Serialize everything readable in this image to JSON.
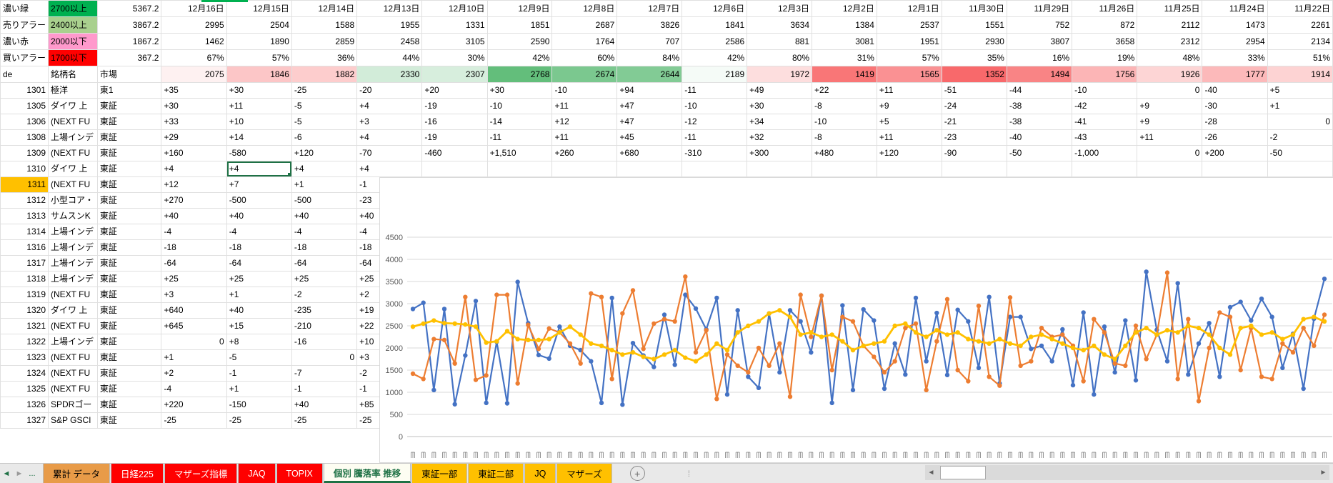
{
  "sheet": {
    "corner_rows": [
      {
        "label": "濃い緑",
        "threshold": "2700以上",
        "threshold_bg": "#00b050",
        "value": "5367.2"
      },
      {
        "label": "売りアラー",
        "threshold": "2400以上",
        "threshold_bg": "#a9d08e",
        "value": "3867.2"
      },
      {
        "label": "濃い赤",
        "threshold": "2000以下",
        "threshold_bg": "#ff99cc",
        "value": "1867.2"
      },
      {
        "label": "買いアラー",
        "threshold": "1700以下",
        "threshold_bg": "#ff0000",
        "value": "367.2"
      }
    ],
    "header_row": {
      "code": "de",
      "name": "銘柄名",
      "market": "市場"
    },
    "dates": [
      "12月16日",
      "12月15日",
      "12月14日",
      "12月13日",
      "12月10日",
      "12月9日",
      "12月8日",
      "12月7日",
      "12月6日",
      "12月3日",
      "12月2日",
      "12月1日",
      "11月30日",
      "11月29日",
      "11月26日",
      "11月25日",
      "11月24日",
      "11月22日"
    ],
    "counts_row1": [
      "2995",
      "2504",
      "1588",
      "1955",
      "1331",
      "1851",
      "2687",
      "3826",
      "1841",
      "3634",
      "1384",
      "2537",
      "1551",
      "752",
      "872",
      "2112",
      "1473",
      "2261"
    ],
    "counts_row2": [
      "1462",
      "1890",
      "2859",
      "2458",
      "3105",
      "2590",
      "1764",
      "707",
      "2586",
      "881",
      "3081",
      "1951",
      "2930",
      "3807",
      "3658",
      "2312",
      "2954",
      "2134"
    ],
    "percent_row": [
      "67%",
      "57%",
      "36%",
      "44%",
      "30%",
      "42%",
      "60%",
      "84%",
      "42%",
      "80%",
      "31%",
      "57%",
      "35%",
      "16%",
      "19%",
      "48%",
      "33%",
      "51%"
    ],
    "totals_row": [
      2075,
      1846,
      1882,
      2330,
      2307,
      2768,
      2674,
      2644,
      2189,
      1972,
      1419,
      1565,
      1352,
      1494,
      1756,
      1926,
      1777,
      1914
    ],
    "totals_color_scale": {
      "min": 1352,
      "mid": 2150,
      "max": 2768,
      "min_color": "#F8696B",
      "mid_color": "#FFFFFF",
      "max_color": "#63BE7B"
    },
    "stocks": [
      {
        "code": "1301",
        "name": "極洋",
        "market": "東1",
        "values": [
          "+35",
          "+30",
          "-25",
          "-20",
          "+20",
          "+30",
          "-10",
          "+94",
          "-11",
          "+49",
          "+22",
          "+11",
          "-51",
          "-44",
          "-10",
          "0",
          "-40",
          "+5"
        ]
      },
      {
        "code": "1305",
        "name": "ダイワ 上",
        "market": "東証",
        "values": [
          "+30",
          "+11",
          "-5",
          "+4",
          "-19",
          "-10",
          "+11",
          "+47",
          "-10",
          "+30",
          "-8",
          "+9",
          "-24",
          "-38",
          "-42",
          "+9",
          "-30",
          "+1"
        ]
      },
      {
        "code": "1306",
        "name": "(NEXT FU",
        "market": "東証",
        "values": [
          "+33",
          "+10",
          "-5",
          "+3",
          "-16",
          "-14",
          "+12",
          "+47",
          "-12",
          "+34",
          "-10",
          "+5",
          "-21",
          "-38",
          "-41",
          "+9",
          "-28",
          "0"
        ]
      },
      {
        "code": "1308",
        "name": "上場インデ",
        "market": "東証",
        "values": [
          "+29",
          "+14",
          "-6",
          "+4",
          "-19",
          "-11",
          "+11",
          "+45",
          "-11",
          "+32",
          "-8",
          "+11",
          "-23",
          "-40",
          "-43",
          "+11",
          "-26",
          "-2"
        ]
      },
      {
        "code": "1309",
        "name": "(NEXT FU",
        "market": "東証",
        "values": [
          "+160",
          "-580",
          "+120",
          "-70",
          "-460",
          "+1,510",
          "+260",
          "+680",
          "-310",
          "+300",
          "+480",
          "+120",
          "-90",
          "-50",
          "-1,000",
          "0",
          "+200",
          "-50"
        ]
      },
      {
        "code": "1310",
        "name": "ダイワ 上",
        "market": "東証",
        "values": [
          "+4",
          "+4",
          "+4",
          "+4",
          "",
          "",
          "",
          "",
          "",
          "",
          "",
          "",
          "",
          "",
          "",
          "",
          "",
          ""
        ]
      },
      {
        "code": "1311",
        "name": "(NEXT FU",
        "market": "東証",
        "values": [
          "+12",
          "+7",
          "+1",
          "-1",
          "",
          "",
          "",
          "",
          "",
          "",
          "",
          "",
          "",
          "",
          "",
          "",
          "",
          ""
        ]
      },
      {
        "code": "1312",
        "name": "小型コア・",
        "market": "東証",
        "values": [
          "+270",
          "-500",
          "-500",
          "-23",
          "",
          "",
          "",
          "",
          "",
          "",
          "",
          "",
          "",
          "",
          "",
          "",
          "",
          ""
        ]
      },
      {
        "code": "1313",
        "name": "サムスンK",
        "market": "東証",
        "values": [
          "+40",
          "+40",
          "+40",
          "+40",
          "",
          "",
          "",
          "",
          "",
          "",
          "",
          "",
          "",
          "",
          "",
          "",
          "",
          ""
        ]
      },
      {
        "code": "1314",
        "name": "上場インデ",
        "market": "東証",
        "values": [
          "-4",
          "-4",
          "-4",
          "-4",
          "",
          "",
          "",
          "",
          "",
          "",
          "",
          "",
          "",
          "",
          "",
          "",
          "",
          ""
        ]
      },
      {
        "code": "1316",
        "name": "上場インデ",
        "market": "東証",
        "values": [
          "-18",
          "-18",
          "-18",
          "-18",
          "",
          "",
          "",
          "",
          "",
          "",
          "",
          "",
          "",
          "",
          "",
          "",
          "",
          ""
        ]
      },
      {
        "code": "1317",
        "name": "上場インデ",
        "market": "東証",
        "values": [
          "-64",
          "-64",
          "-64",
          "-64",
          "",
          "",
          "",
          "",
          "",
          "",
          "",
          "",
          "",
          "",
          "",
          "",
          "",
          ""
        ]
      },
      {
        "code": "1318",
        "name": "上場インデ",
        "market": "東証",
        "values": [
          "+25",
          "+25",
          "+25",
          "+25",
          "",
          "",
          "",
          "",
          "",
          "",
          "",
          "",
          "",
          "",
          "",
          "",
          "",
          ""
        ]
      },
      {
        "code": "1319",
        "name": "(NEXT FU",
        "market": "東証",
        "values": [
          "+3",
          "+1",
          "-2",
          "+2",
          "",
          "",
          "",
          "",
          "",
          "",
          "",
          "",
          "",
          "",
          "",
          "",
          "",
          ""
        ]
      },
      {
        "code": "1320",
        "name": "ダイワ 上",
        "market": "東証",
        "values": [
          "+640",
          "+40",
          "-235",
          "+19",
          "",
          "",
          "",
          "",
          "",
          "",
          "",
          "",
          "",
          "",
          "",
          "",
          "",
          ""
        ]
      },
      {
        "code": "1321",
        "name": "(NEXT FU",
        "market": "東証",
        "values": [
          "+645",
          "+15",
          "-210",
          "+22",
          "",
          "",
          "",
          "",
          "",
          "",
          "",
          "",
          "",
          "",
          "",
          "",
          "",
          ""
        ]
      },
      {
        "code": "1322",
        "name": "上場インデ",
        "market": "東証",
        "values": [
          "0",
          "+8",
          "-16",
          "+10",
          "",
          "",
          "",
          "",
          "",
          "",
          "",
          "",
          "",
          "",
          "",
          "",
          "",
          ""
        ]
      },
      {
        "code": "1323",
        "name": "(NEXT FU",
        "market": "東証",
        "values": [
          "+1",
          "-5",
          "0",
          "+3",
          "",
          "",
          "",
          "",
          "",
          "",
          "",
          "",
          "",
          "",
          "",
          "",
          "",
          ""
        ]
      },
      {
        "code": "1324",
        "name": "(NEXT FU",
        "market": "東証",
        "values": [
          "+2",
          "-1",
          "-7",
          "-2",
          "",
          "",
          "",
          "",
          "",
          "",
          "",
          "",
          "",
          "",
          "",
          "",
          "",
          ""
        ]
      },
      {
        "code": "1325",
        "name": "(NEXT FU",
        "market": "東証",
        "values": [
          "-4",
          "+1",
          "-1",
          "-1",
          "",
          "",
          "",
          "",
          "",
          "",
          "",
          "",
          "",
          "",
          "",
          "",
          "",
          ""
        ]
      },
      {
        "code": "1326",
        "name": "SPDRゴー",
        "market": "東証",
        "values": [
          "+220",
          "-150",
          "+40",
          "+85",
          "",
          "",
          "",
          "",
          "",
          "",
          "",
          "",
          "",
          "",
          "",
          "",
          "",
          ""
        ]
      },
      {
        "code": "1327",
        "name": "S&P GSCI",
        "market": "東証",
        "values": [
          "-25",
          "-25",
          "-25",
          "-25",
          "",
          "",
          "",
          "",
          "",
          "",
          "",
          "",
          "",
          "",
          "",
          "",
          "",
          ""
        ]
      }
    ],
    "selected_cell": {
      "code": "1310",
      "col_index": 1
    },
    "highlighted_code": "1311",
    "highlight_color": "#ffc000"
  },
  "chart_data": {
    "type": "line",
    "title": "",
    "xlabel": "",
    "ylabel": "",
    "ylim": [
      0,
      4500
    ],
    "ytick_step": 500,
    "ytick_labels": [
      "4500",
      "4000",
      "3500",
      "3000",
      "2500",
      "2000",
      "1500",
      "1000",
      "500",
      "0"
    ],
    "grid": true,
    "legend": "none",
    "marker": "circle",
    "x_tick_labels": "rotated date labels (illegible at this scale)",
    "series": [
      {
        "name": "series-blue",
        "color": "#4472C4",
        "values": [
          2880,
          3020,
          1050,
          2880,
          730,
          1830,
          3060,
          760,
          2140,
          750,
          3490,
          2560,
          1840,
          1760,
          2480,
          2050,
          1950,
          1700,
          760,
          3130,
          720,
          2110,
          1830,
          1570,
          2750,
          1620,
          3200,
          2890,
          2420,
          3130,
          950,
          2850,
          1350,
          1100,
          2780,
          1450,
          2850,
          2600,
          1900,
          3180,
          760,
          2960,
          1050,
          2870,
          2620,
          1080,
          2100,
          1400,
          3130,
          1700,
          2790,
          1390,
          2860,
          2600,
          1550,
          3150,
          1200,
          2700,
          2700,
          1980,
          2050,
          1700,
          2420,
          1160,
          2800,
          950,
          2480,
          1450,
          2620,
          1270,
          3720,
          2410,
          1700,
          3460,
          1400,
          2100,
          2560,
          1350,
          2920,
          3040,
          2620,
          3110,
          2700,
          1550,
          2320,
          1080,
          2660,
          3560
        ]
      },
      {
        "name": "series-orange",
        "color": "#ED7D31",
        "values": [
          1420,
          1300,
          2200,
          2180,
          1650,
          3150,
          1280,
          1380,
          3200,
          3200,
          1200,
          2520,
          1980,
          2440,
          2350,
          2100,
          1650,
          3230,
          3150,
          1300,
          2780,
          3300,
          1980,
          2550,
          2650,
          2600,
          3610,
          1900,
          2400,
          850,
          1850,
          1600,
          1450,
          2000,
          1600,
          2100,
          900,
          3200,
          2250,
          3180,
          1500,
          2700,
          2600,
          2050,
          1800,
          1450,
          1700,
          2450,
          2550,
          1050,
          2150,
          3100,
          1500,
          1250,
          2950,
          1350,
          1150,
          3140,
          1600,
          1700,
          2450,
          2250,
          2300,
          2050,
          1250,
          2650,
          2350,
          1650,
          1600,
          2500,
          1750,
          2300,
          3700,
          1300,
          2650,
          800,
          2000,
          2800,
          2700,
          1500,
          2450,
          1350,
          1300,
          2100,
          1900,
          2450,
          2050,
          2750
        ]
      },
      {
        "name": "series-yellow",
        "color": "#FFC000",
        "values": [
          2480,
          2550,
          2620,
          2560,
          2550,
          2530,
          2480,
          2120,
          2150,
          2380,
          2200,
          2180,
          2180,
          2200,
          2350,
          2480,
          2300,
          2100,
          2050,
          1950,
          1850,
          1900,
          1800,
          1750,
          1850,
          1950,
          1780,
          1700,
          1850,
          2100,
          1950,
          2350,
          2500,
          2600,
          2780,
          2850,
          2700,
          2300,
          2350,
          2250,
          2300,
          2150,
          1950,
          2050,
          2100,
          2150,
          2500,
          2550,
          2350,
          2250,
          2400,
          2300,
          2350,
          2200,
          2150,
          2100,
          2200,
          2100,
          2050,
          2250,
          2300,
          2200,
          2100,
          2000,
          1950,
          2050,
          1850,
          1750,
          2050,
          2350,
          2450,
          2300,
          2400,
          2350,
          2500,
          2450,
          2300,
          2000,
          1850,
          2450,
          2500,
          2300,
          2350,
          2200,
          2300,
          2650,
          2700,
          2600
        ]
      }
    ]
  },
  "tab_bar": {
    "nav": {
      "left_arrow": "◄",
      "right_arrow": "►",
      "ellipsis": "..."
    },
    "tabs": [
      {
        "label": "累計 データ",
        "bg": "#e89b48",
        "fg": "#000000",
        "active": false
      },
      {
        "label": "日経225",
        "bg": "#ff0000",
        "fg": "#ffffff",
        "active": false
      },
      {
        "label": "マザーズ指標",
        "bg": "#ff0000",
        "fg": "#ffffff",
        "active": false
      },
      {
        "label": "JAQ",
        "bg": "#ff0000",
        "fg": "#ffffff",
        "active": false
      },
      {
        "label": "TOPIX",
        "bg": "#ff0000",
        "fg": "#ffffff",
        "active": false
      },
      {
        "label": "個別 騰落率 推移",
        "bg": "#fdfdf2",
        "fg": "#1e7145",
        "active": true
      },
      {
        "label": "東証一部",
        "bg": "#ffc000",
        "fg": "#000000",
        "active": false
      },
      {
        "label": "東証二部",
        "bg": "#ffc000",
        "fg": "#000000",
        "active": false
      },
      {
        "label": "JQ",
        "bg": "#ffc000",
        "fg": "#000000",
        "active": false
      },
      {
        "label": "マザーズ",
        "bg": "#ffc000",
        "fg": "#000000",
        "active": false
      }
    ],
    "add_sheet_label": "+",
    "divider": "⁞",
    "scrollbar": {
      "left_arrow": "◄",
      "right_arrow": "►"
    }
  }
}
